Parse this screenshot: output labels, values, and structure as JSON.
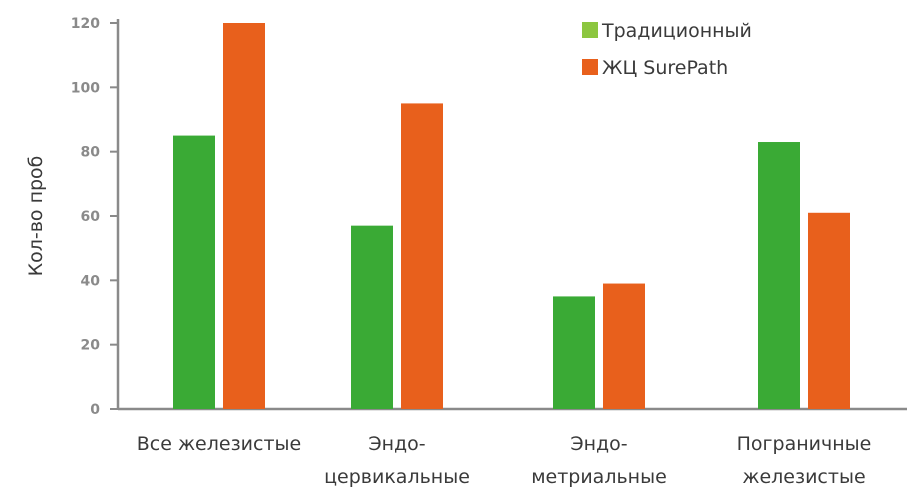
{
  "chart_data": {
    "type": "bar",
    "categories": [
      [
        "Все железистые"
      ],
      [
        "Эндо-",
        "цервикальные"
      ],
      [
        "Эндо-",
        "метриальные"
      ],
      [
        "Пограничные",
        "железистые"
      ]
    ],
    "series": [
      {
        "name": "Традиционный",
        "values": [
          85,
          57,
          35,
          83
        ]
      },
      {
        "name": "ЖЦ SurePath",
        "values": [
          120,
          95,
          39,
          61
        ]
      }
    ],
    "colors": {
      "bar_series_1": "#3aaa35",
      "bar_series_2": "#e8601c",
      "legend_series_1": "#8cc63f",
      "legend_series_2": "#e8601c",
      "axis": "#8a8a8a"
    },
    "title": "",
    "xlabel": "",
    "ylabel": "Кол-во проб",
    "ylim": [
      0,
      120
    ],
    "yticks": [
      0,
      20,
      40,
      60,
      80,
      100,
      120
    ],
    "grid": false,
    "legend_position": "top-right"
  }
}
